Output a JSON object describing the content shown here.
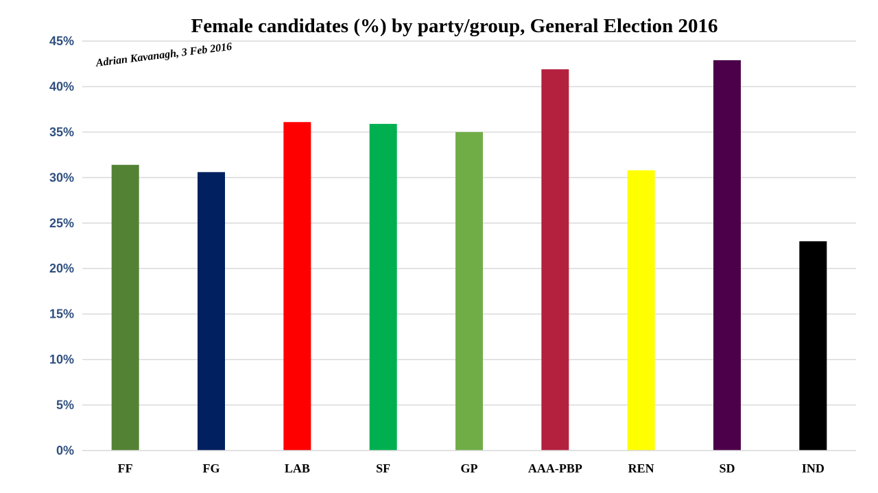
{
  "chart_data": {
    "type": "bar",
    "title": "Female candidates (%) by party/group, General Election 2016",
    "annotation": "Adrian Kavanagh, 3 Feb 2016",
    "xlabel": "",
    "ylabel": "",
    "ylim": [
      0,
      45
    ],
    "y_tick_step": 5,
    "y_tick_format": "percent",
    "grid": true,
    "legend": "none",
    "categories": [
      "FF",
      "FG",
      "LAB",
      "SF",
      "GP",
      "AAA-PBP",
      "REN",
      "SD",
      "IND"
    ],
    "values": [
      31.4,
      30.6,
      36.1,
      35.9,
      35.0,
      41.9,
      30.8,
      42.9,
      23.0
    ],
    "colors": [
      "#548235",
      "#002060",
      "#ff0000",
      "#00b050",
      "#70ad47",
      "#b4213f",
      "#ffff00",
      "#4b0049",
      "#000000"
    ]
  }
}
